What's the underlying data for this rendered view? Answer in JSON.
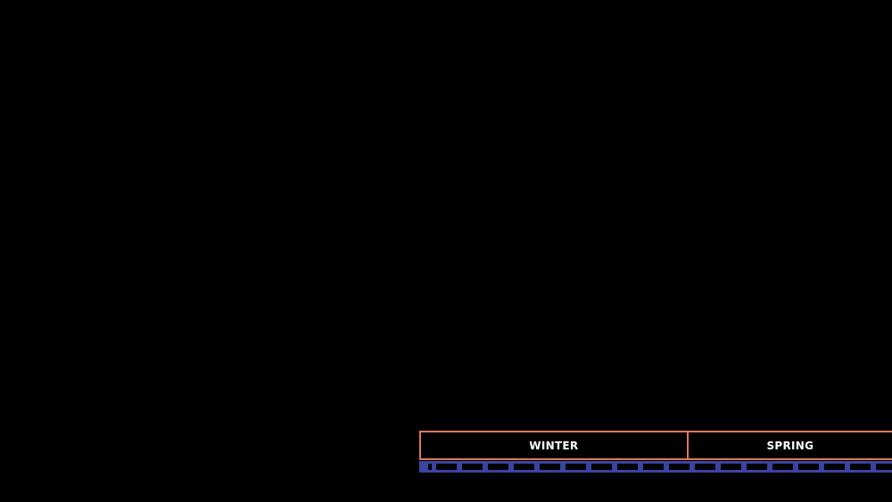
{
  "timeline": {
    "seasons": [
      {
        "label": "WINTER"
      },
      {
        "label": "SPRING"
      }
    ],
    "colors": {
      "background": "#000000",
      "season_border": "#e07a50",
      "season_text": "#ffffff",
      "tick_bar": "#3b43a3"
    }
  }
}
